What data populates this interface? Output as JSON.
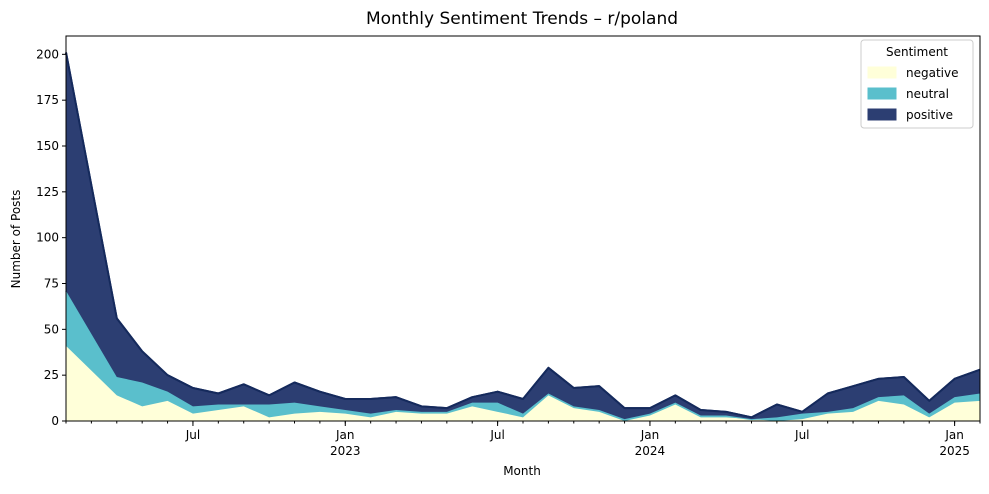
{
  "chart_data": {
    "type": "area",
    "stacked": true,
    "title": "Monthly Sentiment Trends – r/poland",
    "xlabel": "Month",
    "ylabel": "Number of Posts",
    "x": [
      "2022-03",
      "2022-04",
      "2022-05",
      "2022-06",
      "2022-07",
      "2022-08",
      "2022-09",
      "2022-10",
      "2022-11",
      "2022-12",
      "2023-01",
      "2023-02",
      "2023-03",
      "2023-04",
      "2023-05",
      "2023-06",
      "2023-07",
      "2023-08",
      "2023-09",
      "2023-10",
      "2023-11",
      "2023-12",
      "2024-01",
      "2024-02",
      "2024-03",
      "2024-04",
      "2024-05",
      "2024-06",
      "2024-07",
      "2024-08",
      "2024-09",
      "2024-10",
      "2024-11",
      "2024-12",
      "2025-01",
      "2025-02"
    ],
    "xlim": [
      "2022-02",
      "2025-02"
    ],
    "ylim": [
      0,
      210
    ],
    "yticks": [
      0,
      25,
      50,
      75,
      100,
      125,
      150,
      175,
      200
    ],
    "xticks": [
      {
        "date": "2022-07",
        "label": "Jul",
        "sub": ""
      },
      {
        "date": "2023-01",
        "label": "Jan",
        "sub": "2023"
      },
      {
        "date": "2023-07",
        "label": "Jul",
        "sub": ""
      },
      {
        "date": "2024-01",
        "label": "Jan",
        "sub": "2024"
      },
      {
        "date": "2024-07",
        "label": "Jul",
        "sub": ""
      },
      {
        "date": "2025-01",
        "label": "Jan",
        "sub": "2025"
      }
    ],
    "legend": {
      "title": "Sentiment",
      "position": "top-right"
    },
    "series": [
      {
        "name": "negative",
        "color": "#ffffd9",
        "values": [
          41,
          14,
          8,
          11,
          4,
          6,
          8,
          2,
          4,
          5,
          4,
          2,
          5,
          4,
          4,
          8,
          5,
          2,
          14,
          7,
          5,
          0,
          3,
          9,
          2,
          2,
          1,
          0,
          1,
          4,
          5,
          11,
          9,
          2,
          10,
          11
        ]
      },
      {
        "name": "neutral",
        "color": "#5abfcc",
        "values": [
          30,
          10,
          13,
          5,
          4,
          3,
          1,
          7,
          6,
          3,
          2,
          2,
          1,
          1,
          1,
          2,
          5,
          2,
          1,
          1,
          1,
          1,
          1,
          1,
          1,
          1,
          0,
          2,
          3,
          1,
          2,
          2,
          5,
          2,
          3,
          4
        ]
      },
      {
        "name": "positive",
        "color": "#2c3e72",
        "values": [
          130,
          32,
          17,
          9,
          10,
          6,
          11,
          5,
          11,
          8,
          6,
          8,
          7,
          3,
          2,
          3,
          6,
          8,
          14,
          10,
          13,
          6,
          3,
          4,
          3,
          2,
          1,
          7,
          1,
          10,
          12,
          10,
          10,
          7,
          10,
          13
        ]
      }
    ]
  }
}
